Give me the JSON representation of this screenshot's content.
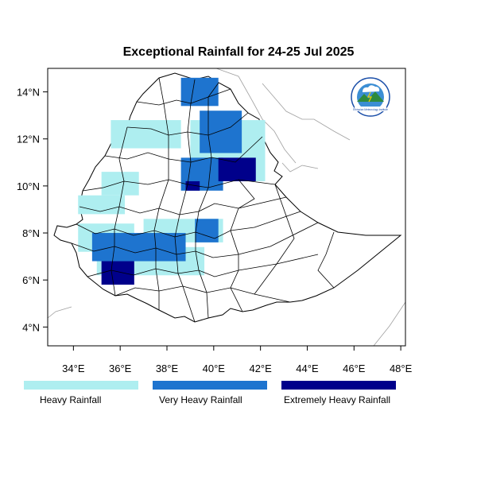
{
  "title": "Exceptional Rainfall for 24-25 Jul 2025",
  "axes": {
    "lon_range": [
      32.9,
      48.2
    ],
    "lat_range": [
      3.2,
      15.0
    ],
    "x_ticks": [
      {
        "value": 34,
        "label": "34°E"
      },
      {
        "value": 36,
        "label": "36°E"
      },
      {
        "value": 38,
        "label": "38°E"
      },
      {
        "value": 40,
        "label": "40°E"
      },
      {
        "value": 42,
        "label": "42°E"
      },
      {
        "value": 44,
        "label": "44°E"
      },
      {
        "value": 46,
        "label": "46°E"
      },
      {
        "value": 48,
        "label": "48°E"
      }
    ],
    "y_ticks": [
      {
        "value": 4,
        "label": "4°N"
      },
      {
        "value": 6,
        "label": "6°N"
      },
      {
        "value": 8,
        "label": "8°N"
      },
      {
        "value": 10,
        "label": "10°N"
      },
      {
        "value": 12,
        "label": "12°N"
      },
      {
        "value": 14,
        "label": "14°N"
      }
    ]
  },
  "legend": {
    "placement": "bottom",
    "items": [
      {
        "label": "Heavy Rainfall",
        "color": "#aeeef0"
      },
      {
        "label": "Very Heavy Rainfall",
        "color": "#1e74cf"
      },
      {
        "label": "Extremely Heavy Rainfall",
        "color": "#00008b"
      }
    ]
  },
  "logo": {
    "text": "Ethiopian Meteorology Institute",
    "icon": "meteorology-logo"
  },
  "colors": {
    "heavy": "#aeeef0",
    "very_heavy": "#1e74cf",
    "extreme": "#00008b",
    "border": "#000000",
    "neighbor_border": "#a0a0a0"
  },
  "rainfall_areas": [
    {
      "category": "heavy",
      "lon": [
        35.2,
        36.8
      ],
      "lat": [
        9.6,
        10.6
      ]
    },
    {
      "category": "heavy",
      "lon": [
        35.6,
        38.6
      ],
      "lat": [
        11.6,
        12.8
      ]
    },
    {
      "category": "heavy",
      "lon": [
        39.0,
        42.2
      ],
      "lat": [
        10.2,
        12.8
      ]
    },
    {
      "category": "heavy",
      "lon": [
        34.2,
        36.2
      ],
      "lat": [
        8.8,
        9.6
      ]
    },
    {
      "category": "heavy",
      "lon": [
        34.2,
        36.6
      ],
      "lat": [
        7.2,
        8.4
      ]
    },
    {
      "category": "heavy",
      "lon": [
        35.0,
        39.6
      ],
      "lat": [
        6.2,
        7.4
      ]
    },
    {
      "category": "heavy",
      "lon": [
        37.0,
        40.4
      ],
      "lat": [
        7.6,
        8.6
      ]
    },
    {
      "category": "very_heavy",
      "lon": [
        38.6,
        40.2
      ],
      "lat": [
        13.4,
        14.6
      ]
    },
    {
      "category": "very_heavy",
      "lon": [
        39.4,
        41.2
      ],
      "lat": [
        11.4,
        13.2
      ]
    },
    {
      "category": "very_heavy",
      "lon": [
        38.6,
        40.4
      ],
      "lat": [
        9.8,
        11.2
      ]
    },
    {
      "category": "very_heavy",
      "lon": [
        34.8,
        38.8
      ],
      "lat": [
        6.8,
        8.0
      ]
    },
    {
      "category": "very_heavy",
      "lon": [
        39.2,
        40.2
      ],
      "lat": [
        7.6,
        8.6
      ]
    },
    {
      "category": "extreme",
      "lon": [
        40.2,
        41.8
      ],
      "lat": [
        10.2,
        11.2
      ]
    },
    {
      "category": "extreme",
      "lon": [
        35.2,
        36.6
      ],
      "lat": [
        5.8,
        6.8
      ]
    },
    {
      "category": "extreme",
      "lon": [
        38.8,
        39.4
      ],
      "lat": [
        9.8,
        10.2
      ]
    }
  ]
}
